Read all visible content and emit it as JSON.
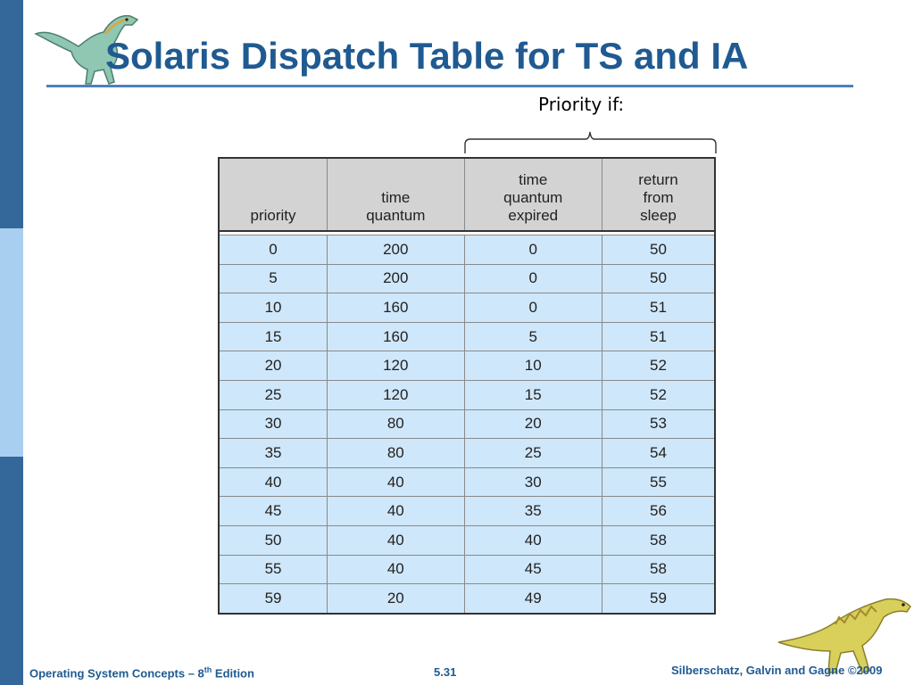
{
  "slide": {
    "title": "Solaris Dispatch Table for TS and IA",
    "annotation": "Priority if:"
  },
  "table": {
    "headers": [
      [
        "priority"
      ],
      [
        "time",
        "quantum"
      ],
      [
        "time",
        "quantum",
        "expired"
      ],
      [
        "return",
        "from",
        "sleep"
      ]
    ],
    "rows": [
      [
        "0",
        "200",
        "0",
        "50"
      ],
      [
        "5",
        "200",
        "0",
        "50"
      ],
      [
        "10",
        "160",
        "0",
        "51"
      ],
      [
        "15",
        "160",
        "5",
        "51"
      ],
      [
        "20",
        "120",
        "10",
        "52"
      ],
      [
        "25",
        "120",
        "15",
        "52"
      ],
      [
        "30",
        "80",
        "20",
        "53"
      ],
      [
        "35",
        "80",
        "25",
        "54"
      ],
      [
        "40",
        "40",
        "30",
        "55"
      ],
      [
        "45",
        "40",
        "35",
        "56"
      ],
      [
        "50",
        "40",
        "40",
        "58"
      ],
      [
        "55",
        "40",
        "45",
        "58"
      ],
      [
        "59",
        "20",
        "49",
        "59"
      ]
    ]
  },
  "footer": {
    "book_title": "Operating System Concepts – 8",
    "edition_sup": "th",
    "edition_suffix": " Edition",
    "page_number": "5.31",
    "copyright": "Silberschatz, Galvin and Gagne ©2009"
  },
  "colors": {
    "title": "#1f5a91",
    "sidebar_dark": "#34679a",
    "sidebar_light": "#a8cff0",
    "header_fill": "#d3d3d3",
    "row_fill": "#cfe7fa"
  }
}
